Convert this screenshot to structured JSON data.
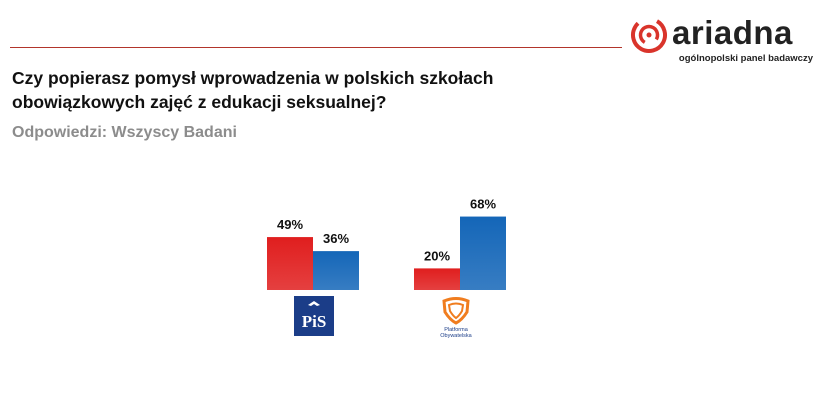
{
  "brand": {
    "name": "ariadna",
    "tagline": "ogólnopolski panel badawczy",
    "accent": "#d9342b"
  },
  "question": "Czy popierasz pomysł wprowadzenia w polskich szkołach obowiązkowych zajęć z edukacji seksualnej?",
  "subtitle": "Odpowiedzi: Wszyscy Badani",
  "colors": {
    "red": "#e01e1e",
    "blue": "#1466b8"
  },
  "chart_data": {
    "type": "bar",
    "title": "Czy popierasz pomysł wprowadzenia w polskich szkołach obowiązkowych zajęć z edukacji seksualnej?",
    "categories": [
      "PiS",
      "Platforma Obywatelska"
    ],
    "series": [
      {
        "name": "red",
        "values": [
          49,
          20
        ],
        "labels": [
          "49%",
          "20%"
        ]
      },
      {
        "name": "blue",
        "values": [
          36,
          68
        ],
        "labels": [
          "36%",
          "68%"
        ]
      }
    ],
    "ylim": [
      0,
      100
    ],
    "xlabel": "",
    "ylabel": "",
    "grid": false
  },
  "logos": {
    "pis_text": "PiS",
    "po_text_line1": "Platforma",
    "po_text_line2": "Obywatelska"
  }
}
